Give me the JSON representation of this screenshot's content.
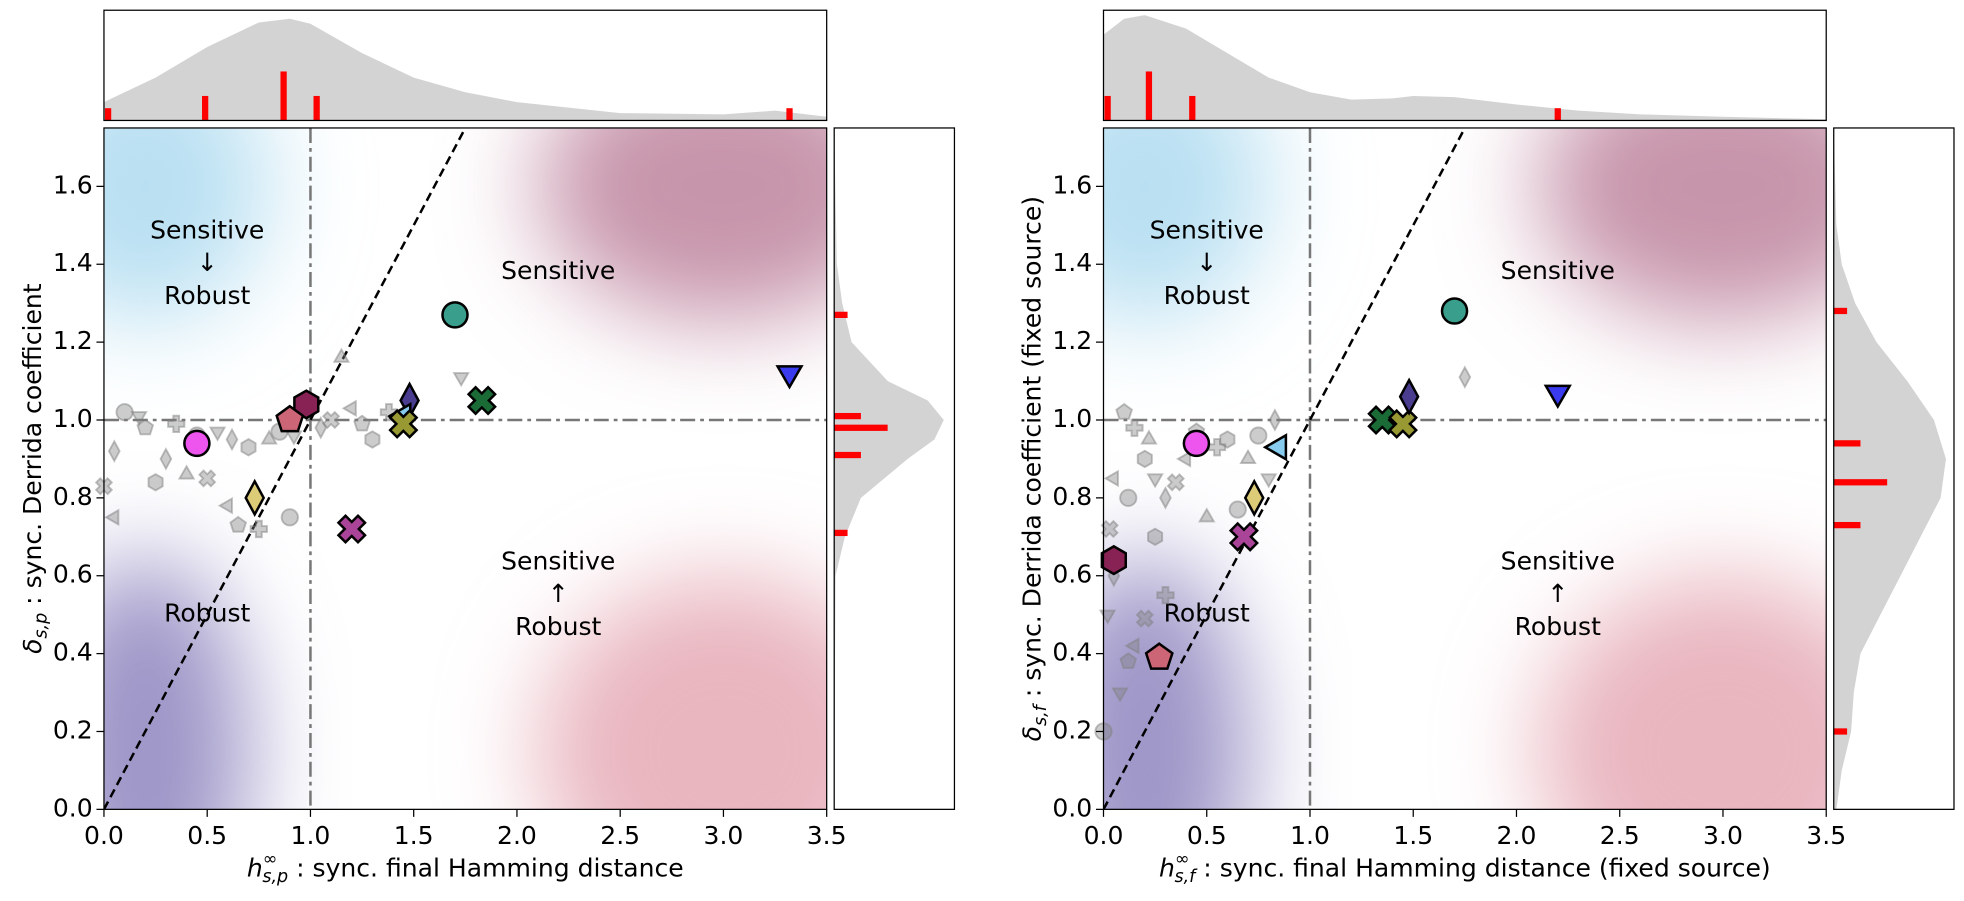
{
  "chart_data": [
    {
      "type": "scatter",
      "xlabel": {
        "symbol": "h",
        "sup": "∞",
        "sub": "s,p",
        "text": " : sync. final Hamming distance"
      },
      "ylabel": {
        "symbol": "δ",
        "sub": "s,p",
        "text": " : sync. Derrida coefficient"
      },
      "xlim": [
        0,
        3.5
      ],
      "ylim": [
        0,
        1.75
      ],
      "xticks": [
        {
          "value": 0,
          "label": "0.0"
        },
        {
          "value": 0.5,
          "label": "0.5"
        },
        {
          "value": 1,
          "label": "1.0"
        },
        {
          "value": 1.5,
          "label": "1.5"
        },
        {
          "value": 2,
          "label": "2.0"
        },
        {
          "value": 2.5,
          "label": "2.5"
        },
        {
          "value": 3,
          "label": "3.0"
        },
        {
          "value": 3.5,
          "label": "3.5"
        }
      ],
      "yticks": [
        {
          "value": 0,
          "label": "0.0"
        },
        {
          "value": 0.2,
          "label": "0.2"
        },
        {
          "value": 0.4,
          "label": "0.4"
        },
        {
          "value": 0.6,
          "label": "0.6"
        },
        {
          "value": 0.8,
          "label": "0.8"
        },
        {
          "value": 1,
          "label": "1.0"
        },
        {
          "value": 1.2,
          "label": "1.2"
        },
        {
          "value": 1.4,
          "label": "1.4"
        },
        {
          "value": 1.6,
          "label": "1.6"
        }
      ],
      "vline": 1,
      "hline": 1,
      "identity_line": true,
      "regions": [
        [
          "Sensitive",
          "↓",
          "Robust"
        ],
        [
          "Sensitive"
        ],
        [
          "Robust"
        ],
        [
          "Sensitive",
          "↑",
          "Robust"
        ]
      ],
      "points": [
        {
          "marker": "circle",
          "color": "#3a9e8c",
          "x": 1.7,
          "y": 1.27
        },
        {
          "marker": "triangle-down",
          "color": "#3a3aef",
          "x": 3.32,
          "y": 1.12
        },
        {
          "marker": "x",
          "color": "#1a6b35",
          "x": 1.83,
          "y": 1.05
        },
        {
          "marker": "diamond",
          "color": "#4a3d8f",
          "x": 1.48,
          "y": 1.05
        },
        {
          "marker": "triangle-left",
          "color": "#87ccee",
          "x": 1.45,
          "y": 1.01
        },
        {
          "marker": "x",
          "color": "#999933",
          "x": 1.45,
          "y": 0.99
        },
        {
          "marker": "hexagon",
          "color": "#882255",
          "x": 0.98,
          "y": 1.04
        },
        {
          "marker": "pentagon",
          "color": "#cc6677",
          "x": 0.9,
          "y": 1.0
        },
        {
          "marker": "circle",
          "color": "#ee55ee",
          "x": 0.45,
          "y": 0.94
        },
        {
          "marker": "diamond",
          "color": "#ddcc77",
          "x": 0.73,
          "y": 0.8
        },
        {
          "marker": "x",
          "color": "#aa4499",
          "x": 1.2,
          "y": 0.72
        }
      ],
      "grey_points": {
        "color": "#808080",
        "x": [
          0.1,
          0.17,
          0.05,
          0.0,
          0.05,
          0.2,
          0.35,
          0.25,
          0.4,
          0.45,
          0.55,
          0.62,
          0.5,
          0.6,
          0.65,
          0.75,
          0.7,
          0.8,
          0.85,
          0.92,
          1.05,
          1.1,
          1.2,
          1.25,
          1.38,
          1.3,
          1.15,
          0.9,
          1.73,
          0.3
        ],
        "y": [
          1.02,
          1.01,
          0.92,
          0.83,
          0.75,
          0.98,
          0.99,
          0.84,
          0.86,
          0.96,
          0.97,
          0.95,
          0.85,
          0.78,
          0.73,
          0.72,
          0.93,
          0.95,
          0.97,
          0.96,
          0.98,
          1.0,
          1.03,
          0.99,
          1.02,
          0.95,
          1.16,
          0.75,
          1.11,
          0.9
        ]
      },
      "top_marginal": {
        "lim": [
          0,
          9
        ],
        "hist": {
          "color": "#ff0000",
          "at": [
            0.02,
            0.49,
            0.87,
            1.03,
            3.32
          ],
          "counts": [
            1,
            2,
            4,
            2,
            1
          ]
        },
        "kde": {
          "color": "#d3d3d3",
          "at": [
            0,
            0.25,
            0.5,
            0.75,
            0.9,
            1.0,
            1.25,
            1.5,
            1.75,
            2,
            2.5,
            3,
            3.25,
            3.5
          ],
          "density": [
            1.5,
            3.5,
            6,
            8,
            8.3,
            7.9,
            5.5,
            3.5,
            2.3,
            1.5,
            0.6,
            0.5,
            0.8,
            0.3
          ]
        }
      },
      "right_marginal": {
        "lim": [
          0,
          9
        ],
        "hist": {
          "color": "#ff0000",
          "at": [
            1.27,
            1.01,
            0.98,
            0.91,
            0.71
          ],
          "counts": [
            1,
            2,
            4,
            2,
            1
          ]
        },
        "kde": {
          "color": "#d3d3d3",
          "at": [
            0,
            0.6,
            0.7,
            0.8,
            0.9,
            0.95,
            1.0,
            1.05,
            1.1,
            1.2,
            1.3,
            1.4,
            1.75
          ],
          "density": [
            0,
            0.1,
            0.8,
            2,
            5.5,
            7.5,
            8.2,
            7,
            4,
            1.3,
            0.6,
            0.2,
            0
          ]
        }
      }
    },
    {
      "type": "scatter",
      "xlabel": {
        "symbol": "h",
        "sup": "∞",
        "sub": "s,f",
        "text": " : sync. final Hamming distance (fixed source)"
      },
      "ylabel": {
        "symbol": "δ",
        "sub": "s,f",
        "text": " : sync. Derrida coefficient (fixed source)"
      },
      "xlim": [
        0,
        3.5
      ],
      "ylim": [
        0,
        1.75
      ],
      "xticks": [
        {
          "value": 0,
          "label": "0.0"
        },
        {
          "value": 0.5,
          "label": "0.5"
        },
        {
          "value": 1,
          "label": "1.0"
        },
        {
          "value": 1.5,
          "label": "1.5"
        },
        {
          "value": 2,
          "label": "2.0"
        },
        {
          "value": 2.5,
          "label": "2.5"
        },
        {
          "value": 3,
          "label": "3.0"
        },
        {
          "value": 3.5,
          "label": "3.5"
        }
      ],
      "yticks": [
        {
          "value": 0,
          "label": "0.0"
        },
        {
          "value": 0.2,
          "label": "0.2"
        },
        {
          "value": 0.4,
          "label": "0.4"
        },
        {
          "value": 0.6,
          "label": "0.6"
        },
        {
          "value": 0.8,
          "label": "0.8"
        },
        {
          "value": 1,
          "label": "1.0"
        },
        {
          "value": 1.2,
          "label": "1.2"
        },
        {
          "value": 1.4,
          "label": "1.4"
        },
        {
          "value": 1.6,
          "label": "1.6"
        }
      ],
      "vline": 1,
      "hline": 1,
      "identity_line": true,
      "regions": [
        [
          "Sensitive",
          "↓",
          "Robust"
        ],
        [
          "Sensitive"
        ],
        [
          "Robust"
        ],
        [
          "Sensitive",
          "↑",
          "Robust"
        ]
      ],
      "points": [
        {
          "marker": "circle",
          "color": "#3a9e8c",
          "x": 1.7,
          "y": 1.28
        },
        {
          "marker": "triangle-down",
          "color": "#3a3aef",
          "x": 2.2,
          "y": 1.07
        },
        {
          "marker": "x",
          "color": "#1a6b35",
          "x": 1.35,
          "y": 1.0
        },
        {
          "marker": "x",
          "color": "#999933",
          "x": 1.45,
          "y": 0.99
        },
        {
          "marker": "diamond",
          "color": "#4a3d8f",
          "x": 1.48,
          "y": 1.06
        },
        {
          "marker": "triangle-left",
          "color": "#87ccee",
          "x": 0.85,
          "y": 0.93
        },
        {
          "marker": "circle",
          "color": "#ee55ee",
          "x": 0.45,
          "y": 0.94
        },
        {
          "marker": "diamond",
          "color": "#ddcc77",
          "x": 0.73,
          "y": 0.8
        },
        {
          "marker": "x",
          "color": "#aa4499",
          "x": 0.68,
          "y": 0.7
        },
        {
          "marker": "hexagon",
          "color": "#882255",
          "x": 0.05,
          "y": 0.64
        },
        {
          "marker": "pentagon",
          "color": "#cc6677",
          "x": 0.27,
          "y": 0.39
        }
      ],
      "grey_points": {
        "color": "#808080",
        "x": [
          0.0,
          0.02,
          0.05,
          0.03,
          0.05,
          0.1,
          0.15,
          0.2,
          0.22,
          0.12,
          0.25,
          0.3,
          0.35,
          0.4,
          0.45,
          0.55,
          0.6,
          0.7,
          0.75,
          0.8,
          0.83,
          0.2,
          0.15,
          0.12,
          0.3,
          0.25,
          0.5,
          0.65,
          0.08,
          1.75
        ],
        "y": [
          0.2,
          0.5,
          0.6,
          0.72,
          0.85,
          1.02,
          0.98,
          0.9,
          0.95,
          0.8,
          0.85,
          0.8,
          0.84,
          0.9,
          0.97,
          0.93,
          0.95,
          0.9,
          0.96,
          0.85,
          1.0,
          0.49,
          0.42,
          0.38,
          0.55,
          0.7,
          0.75,
          0.77,
          0.3,
          1.11
        ]
      },
      "top_marginal": {
        "lim": [
          0,
          9
        ],
        "hist": {
          "color": "#ff0000",
          "at": [
            0.02,
            0.22,
            0.43,
            2.2
          ],
          "counts": [
            2,
            4,
            2,
            1
          ]
        },
        "kde": {
          "color": "#d3d3d3",
          "at": [
            0,
            0.1,
            0.2,
            0.4,
            0.6,
            0.8,
            1.0,
            1.2,
            1.4,
            1.5,
            1.7,
            2.0,
            2.3,
            2.6,
            3.0,
            3.5
          ],
          "density": [
            7,
            8.3,
            8.6,
            7.5,
            5.5,
            3.5,
            2.3,
            1.7,
            1.8,
            2,
            1.9,
            1.3,
            0.8,
            0.5,
            0.3,
            0.1
          ]
        }
      },
      "right_marginal": {
        "lim": [
          0,
          9
        ],
        "hist": {
          "color": "#ff0000",
          "at": [
            1.28,
            0.94,
            0.84,
            0.73,
            0.2
          ],
          "counts": [
            1,
            2,
            4,
            2,
            1
          ]
        },
        "kde": {
          "color": "#d3d3d3",
          "at": [
            0,
            0.1,
            0.2,
            0.3,
            0.4,
            0.5,
            0.6,
            0.7,
            0.8,
            0.9,
            1.0,
            1.1,
            1.2,
            1.3,
            1.4,
            1.5,
            1.75
          ],
          "density": [
            0.2,
            0.6,
            1.3,
            1.5,
            2,
            3.5,
            5,
            6.5,
            8,
            8.4,
            7.5,
            5.5,
            3.2,
            1.6,
            0.6,
            0.2,
            0
          ]
        }
      }
    }
  ]
}
